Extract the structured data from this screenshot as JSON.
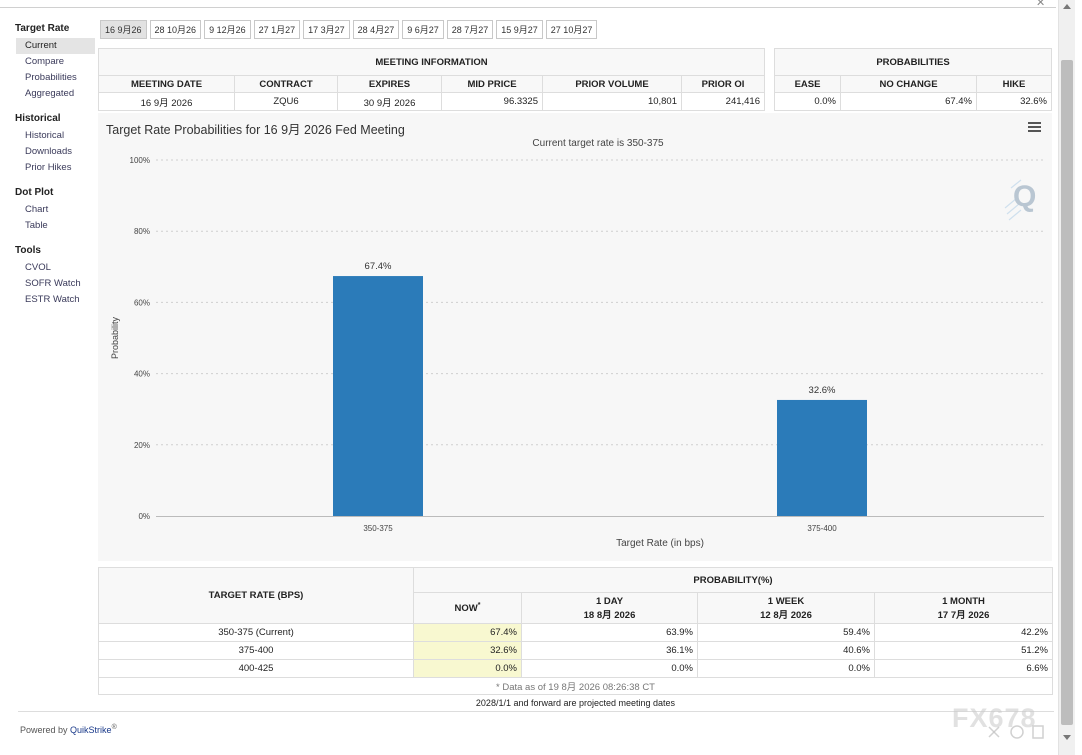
{
  "sidebar": {
    "groups": [
      {
        "title": "Target Rate",
        "items": [
          "Current",
          "Compare",
          "Probabilities",
          "Aggregated"
        ]
      },
      {
        "title": "Historical",
        "items": [
          "Historical",
          "Downloads",
          "Prior Hikes"
        ]
      },
      {
        "title": "Dot Plot",
        "items": [
          "Chart",
          "Table"
        ]
      },
      {
        "title": "Tools",
        "items": [
          "CVOL",
          "SOFR Watch",
          "ESTR Watch"
        ]
      }
    ],
    "active_item": "Current"
  },
  "tabs": [
    "16 9月26",
    "28 10月26",
    "9 12月26",
    "27 1月27",
    "17 3月27",
    "28 4月27",
    "9 6月27",
    "28 7月27",
    "15 9月27",
    "27 10月27"
  ],
  "meeting_info": {
    "title": "MEETING INFORMATION",
    "headers": [
      "MEETING DATE",
      "CONTRACT",
      "EXPIRES",
      "MID PRICE",
      "PRIOR VOLUME",
      "PRIOR OI"
    ],
    "values": [
      "16 9月 2026",
      "ZQU6",
      "30 9月 2026",
      "96.3325",
      "10,801",
      "241,416"
    ]
  },
  "probabilities": {
    "title": "PROBABILITIES",
    "headers": [
      "EASE",
      "NO CHANGE",
      "HIKE"
    ],
    "values": [
      "0.0%",
      "67.4%",
      "32.6%"
    ]
  },
  "chart_data": {
    "type": "bar",
    "title": "Target Rate Probabilities for 16 9月 2026 Fed Meeting",
    "subtitle": "Current target rate is 350-375",
    "categories": [
      "350-375",
      "375-400"
    ],
    "values": [
      67.4,
      32.6
    ],
    "data_labels": [
      "67.4%",
      "32.6%"
    ],
    "xlabel": "Target Rate (in bps)",
    "ylabel": "Probability",
    "ylim": [
      0,
      100
    ],
    "yticks": [
      0,
      20,
      40,
      60,
      80,
      100
    ],
    "ytick_labels": [
      "0%",
      "20%",
      "40%",
      "60%",
      "80%",
      "100%"
    ],
    "grid": true,
    "bar_color": "#2b7bb9"
  },
  "prob_table": {
    "rate_header": "TARGET RATE (BPS)",
    "prob_header": "PROBABILITY(%)",
    "now_header": "NOW",
    "now_mark": "*",
    "periods": [
      {
        "label": "1 DAY",
        "date": "18 8月 2026"
      },
      {
        "label": "1 WEEK",
        "date": "12 8月 2026"
      },
      {
        "label": "1 MONTH",
        "date": "17 7月 2026"
      }
    ],
    "rows": [
      {
        "rate": "350-375 (Current)",
        "now": "67.4%",
        "day": "63.9%",
        "week": "59.4%",
        "month": "42.2%"
      },
      {
        "rate": "375-400",
        "now": "32.6%",
        "day": "36.1%",
        "week": "40.6%",
        "month": "51.2%"
      },
      {
        "rate": "400-425",
        "now": "0.0%",
        "day": "0.0%",
        "week": "0.0%",
        "month": "6.6%"
      }
    ],
    "footnote": "* Data as of 19 8月 2026 08:26:38 CT"
  },
  "projected_note": "2028/1/1 and forward are projected meeting dates",
  "powered_by": {
    "prefix": "Powered by",
    "brand": "QuikStrike",
    "mark": "®"
  },
  "watermark": "FX678",
  "colors": {
    "accent": "#2b7bb9",
    "now_highlight": "#f8f8d0"
  }
}
